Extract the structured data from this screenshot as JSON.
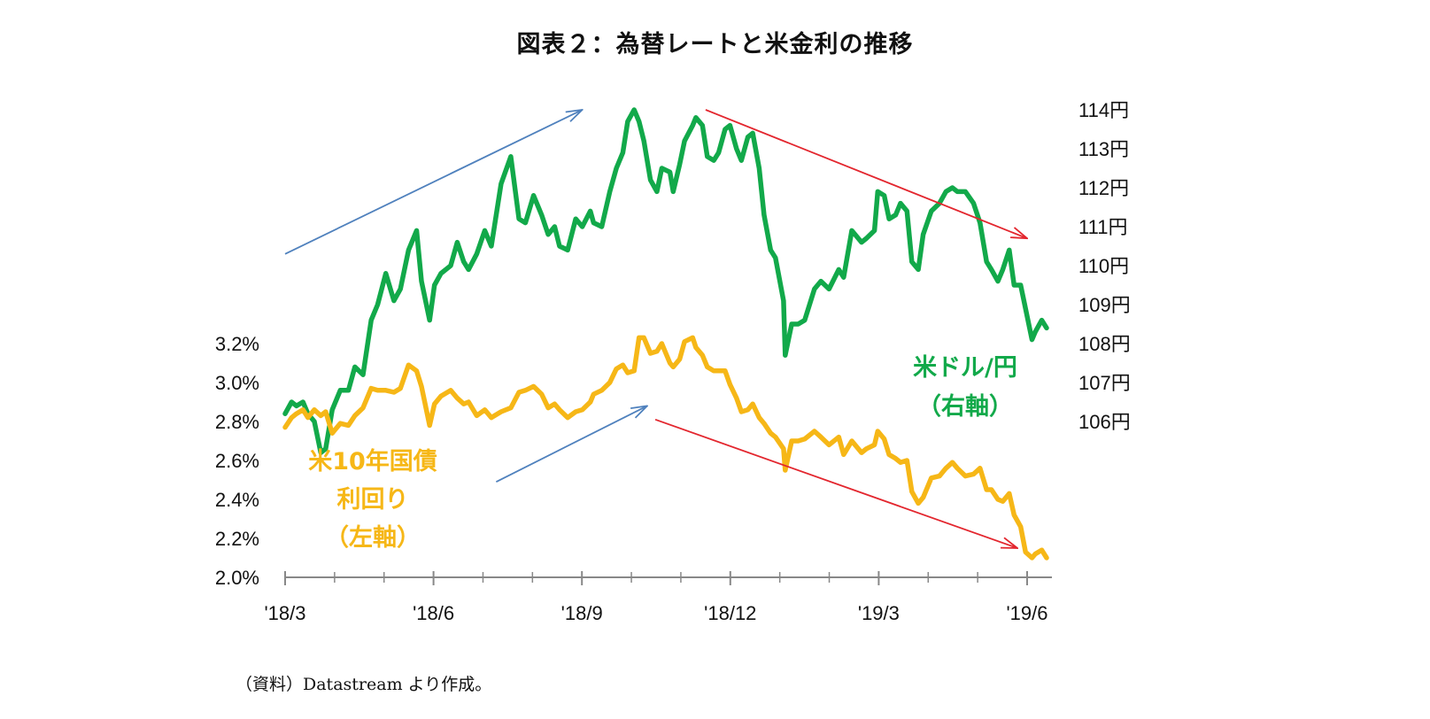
{
  "title": "図表２：為替レートと米金利の推移",
  "source_note": "（資料）Datastream より作成。",
  "chart_data": {
    "type": "line",
    "title": "図表２：為替レートと米金利の推移",
    "x": {
      "tick_labels": [
        "'18/3",
        "'18/6",
        "'18/9",
        "'18/12",
        "'19/3",
        "'19/6"
      ],
      "start": "2018-03-01",
      "end": "2019-06-01"
    },
    "y_left": {
      "tick_labels": [
        "2.0%",
        "2.2%",
        "2.4%",
        "2.6%",
        "2.8%",
        "3.0%",
        "3.2%"
      ],
      "ylim": [
        2.0,
        3.2
      ]
    },
    "y_right": {
      "tick_labels": [
        "106円",
        "107円",
        "108円",
        "109円",
        "110円",
        "111円",
        "112円",
        "113円",
        "114円"
      ],
      "ylim": [
        106,
        114
      ]
    },
    "grid": false,
    "series": [
      {
        "name": "米ドル/円（右軸）",
        "label_lines": [
          "米ドル/円",
          "（右軸）"
        ],
        "axis": "right",
        "color": "#12a94a",
        "points": [
          [
            "2018-03-01",
            106.2
          ],
          [
            "2018-03-05",
            106.5
          ],
          [
            "2018-03-08",
            106.4
          ],
          [
            "2018-03-12",
            106.5
          ],
          [
            "2018-03-15",
            106.2
          ],
          [
            "2018-03-19",
            106.0
          ],
          [
            "2018-03-23",
            105.2
          ],
          [
            "2018-03-26",
            105.3
          ],
          [
            "2018-03-30",
            106.3
          ],
          [
            "2018-04-04",
            106.8
          ],
          [
            "2018-04-09",
            106.8
          ],
          [
            "2018-04-13",
            107.4
          ],
          [
            "2018-04-18",
            107.2
          ],
          [
            "2018-04-23",
            108.6
          ],
          [
            "2018-04-27",
            109.0
          ],
          [
            "2018-05-02",
            109.8
          ],
          [
            "2018-05-07",
            109.1
          ],
          [
            "2018-05-11",
            109.4
          ],
          [
            "2018-05-16",
            110.4
          ],
          [
            "2018-05-21",
            110.9
          ],
          [
            "2018-05-24",
            109.6
          ],
          [
            "2018-05-29",
            108.6
          ],
          [
            "2018-06-01",
            109.5
          ],
          [
            "2018-06-05",
            109.8
          ],
          [
            "2018-06-11",
            110.0
          ],
          [
            "2018-06-15",
            110.6
          ],
          [
            "2018-06-19",
            110.1
          ],
          [
            "2018-06-22",
            109.9
          ],
          [
            "2018-06-27",
            110.3
          ],
          [
            "2018-07-02",
            110.9
          ],
          [
            "2018-07-06",
            110.5
          ],
          [
            "2018-07-12",
            112.1
          ],
          [
            "2018-07-18",
            112.8
          ],
          [
            "2018-07-23",
            111.2
          ],
          [
            "2018-07-27",
            111.1
          ],
          [
            "2018-08-01",
            111.8
          ],
          [
            "2018-08-06",
            111.3
          ],
          [
            "2018-08-10",
            110.8
          ],
          [
            "2018-08-14",
            111.0
          ],
          [
            "2018-08-17",
            110.5
          ],
          [
            "2018-08-22",
            110.4
          ],
          [
            "2018-08-27",
            111.2
          ],
          [
            "2018-08-31",
            111.0
          ],
          [
            "2018-09-05",
            111.4
          ],
          [
            "2018-09-07",
            111.1
          ],
          [
            "2018-09-12",
            111.0
          ],
          [
            "2018-09-17",
            111.9
          ],
          [
            "2018-09-21",
            112.5
          ],
          [
            "2018-09-25",
            112.9
          ],
          [
            "2018-09-28",
            113.7
          ],
          [
            "2018-10-02",
            114.0
          ],
          [
            "2018-10-05",
            113.7
          ],
          [
            "2018-10-08",
            113.2
          ],
          [
            "2018-10-12",
            112.2
          ],
          [
            "2018-10-16",
            111.9
          ],
          [
            "2018-10-19",
            112.5
          ],
          [
            "2018-10-24",
            112.4
          ],
          [
            "2018-10-26",
            111.9
          ],
          [
            "2018-10-30",
            112.6
          ],
          [
            "2018-11-02",
            113.2
          ],
          [
            "2018-11-07",
            113.6
          ],
          [
            "2018-11-09",
            113.8
          ],
          [
            "2018-11-13",
            113.6
          ],
          [
            "2018-11-16",
            112.8
          ],
          [
            "2018-11-20",
            112.7
          ],
          [
            "2018-11-23",
            112.9
          ],
          [
            "2018-11-27",
            113.5
          ],
          [
            "2018-11-30",
            113.6
          ],
          [
            "2018-12-04",
            113.0
          ],
          [
            "2018-12-07",
            112.7
          ],
          [
            "2018-12-11",
            113.3
          ],
          [
            "2018-12-14",
            113.4
          ],
          [
            "2018-12-18",
            112.5
          ],
          [
            "2018-12-21",
            111.3
          ],
          [
            "2018-12-25",
            110.4
          ],
          [
            "2018-12-28",
            110.2
          ],
          [
            "2019-01-02",
            109.1
          ],
          [
            "2019-01-03",
            107.7
          ],
          [
            "2019-01-07",
            108.5
          ],
          [
            "2019-01-11",
            108.5
          ],
          [
            "2019-01-15",
            108.6
          ],
          [
            "2019-01-21",
            109.4
          ],
          [
            "2019-01-25",
            109.6
          ],
          [
            "2019-01-30",
            109.4
          ],
          [
            "2019-02-05",
            109.9
          ],
          [
            "2019-02-08",
            109.7
          ],
          [
            "2019-02-13",
            110.9
          ],
          [
            "2019-02-19",
            110.6
          ],
          [
            "2019-02-22",
            110.7
          ],
          [
            "2019-02-27",
            110.9
          ],
          [
            "2019-03-01",
            111.9
          ],
          [
            "2019-03-05",
            111.8
          ],
          [
            "2019-03-08",
            111.2
          ],
          [
            "2019-03-12",
            111.3
          ],
          [
            "2019-03-15",
            111.6
          ],
          [
            "2019-03-19",
            111.4
          ],
          [
            "2019-03-22",
            110.1
          ],
          [
            "2019-03-26",
            109.9
          ],
          [
            "2019-03-29",
            110.8
          ],
          [
            "2019-04-03",
            111.4
          ],
          [
            "2019-04-08",
            111.6
          ],
          [
            "2019-04-12",
            111.9
          ],
          [
            "2019-04-16",
            112.0
          ],
          [
            "2019-04-19",
            111.9
          ],
          [
            "2019-04-24",
            111.9
          ],
          [
            "2019-04-29",
            111.6
          ],
          [
            "2019-05-03",
            111.1
          ],
          [
            "2019-05-07",
            110.1
          ],
          [
            "2019-05-10",
            109.9
          ],
          [
            "2019-05-14",
            109.6
          ],
          [
            "2019-05-17",
            109.9
          ],
          [
            "2019-05-21",
            110.4
          ],
          [
            "2019-05-24",
            109.5
          ],
          [
            "2019-05-28",
            109.5
          ],
          [
            "2019-05-31",
            108.9
          ],
          [
            "2019-06-04",
            108.1
          ],
          [
            "2019-06-06",
            108.3
          ],
          [
            "2019-06-10",
            108.6
          ],
          [
            "2019-06-13",
            108.4
          ]
        ]
      },
      {
        "name": "米10年国債利回り（左軸）",
        "label_lines": [
          "米10年国債",
          "利回り",
          "（左軸）"
        ],
        "axis": "left",
        "color": "#f6b717",
        "points": [
          [
            "2018-03-01",
            2.77
          ],
          [
            "2018-03-05",
            2.82
          ],
          [
            "2018-03-08",
            2.84
          ],
          [
            "2018-03-12",
            2.86
          ],
          [
            "2018-03-15",
            2.82
          ],
          [
            "2018-03-19",
            2.86
          ],
          [
            "2018-03-23",
            2.83
          ],
          [
            "2018-03-26",
            2.85
          ],
          [
            "2018-03-30",
            2.74
          ],
          [
            "2018-04-04",
            2.79
          ],
          [
            "2018-04-09",
            2.78
          ],
          [
            "2018-04-13",
            2.83
          ],
          [
            "2018-04-18",
            2.87
          ],
          [
            "2018-04-23",
            2.97
          ],
          [
            "2018-04-27",
            2.96
          ],
          [
            "2018-05-02",
            2.96
          ],
          [
            "2018-05-07",
            2.95
          ],
          [
            "2018-05-11",
            2.97
          ],
          [
            "2018-05-16",
            3.09
          ],
          [
            "2018-05-21",
            3.06
          ],
          [
            "2018-05-24",
            2.98
          ],
          [
            "2018-05-29",
            2.78
          ],
          [
            "2018-06-01",
            2.89
          ],
          [
            "2018-06-05",
            2.93
          ],
          [
            "2018-06-11",
            2.96
          ],
          [
            "2018-06-15",
            2.92
          ],
          [
            "2018-06-19",
            2.89
          ],
          [
            "2018-06-22",
            2.9
          ],
          [
            "2018-06-27",
            2.83
          ],
          [
            "2018-07-02",
            2.86
          ],
          [
            "2018-07-06",
            2.82
          ],
          [
            "2018-07-12",
            2.85
          ],
          [
            "2018-07-18",
            2.87
          ],
          [
            "2018-07-23",
            2.95
          ],
          [
            "2018-07-27",
            2.96
          ],
          [
            "2018-08-01",
            2.98
          ],
          [
            "2018-08-06",
            2.94
          ],
          [
            "2018-08-10",
            2.87
          ],
          [
            "2018-08-14",
            2.89
          ],
          [
            "2018-08-17",
            2.86
          ],
          [
            "2018-08-22",
            2.82
          ],
          [
            "2018-08-27",
            2.85
          ],
          [
            "2018-08-31",
            2.86
          ],
          [
            "2018-09-05",
            2.9
          ],
          [
            "2018-09-07",
            2.94
          ],
          [
            "2018-09-12",
            2.96
          ],
          [
            "2018-09-17",
            3.0
          ],
          [
            "2018-09-21",
            3.07
          ],
          [
            "2018-09-25",
            3.09
          ],
          [
            "2018-09-28",
            3.05
          ],
          [
            "2018-10-02",
            3.06
          ],
          [
            "2018-10-05",
            3.23
          ],
          [
            "2018-10-08",
            3.23
          ],
          [
            "2018-10-12",
            3.15
          ],
          [
            "2018-10-16",
            3.16
          ],
          [
            "2018-10-19",
            3.2
          ],
          [
            "2018-10-24",
            3.1
          ],
          [
            "2018-10-26",
            3.08
          ],
          [
            "2018-10-30",
            3.12
          ],
          [
            "2018-11-02",
            3.21
          ],
          [
            "2018-11-07",
            3.23
          ],
          [
            "2018-11-09",
            3.18
          ],
          [
            "2018-11-13",
            3.14
          ],
          [
            "2018-11-16",
            3.08
          ],
          [
            "2018-11-20",
            3.06
          ],
          [
            "2018-11-23",
            3.06
          ],
          [
            "2018-11-27",
            3.06
          ],
          [
            "2018-11-30",
            2.99
          ],
          [
            "2018-12-04",
            2.92
          ],
          [
            "2018-12-07",
            2.85
          ],
          [
            "2018-12-11",
            2.86
          ],
          [
            "2018-12-14",
            2.89
          ],
          [
            "2018-12-18",
            2.82
          ],
          [
            "2018-12-21",
            2.79
          ],
          [
            "2018-12-25",
            2.74
          ],
          [
            "2018-12-28",
            2.72
          ],
          [
            "2019-01-02",
            2.66
          ],
          [
            "2019-01-03",
            2.55
          ],
          [
            "2019-01-07",
            2.7
          ],
          [
            "2019-01-11",
            2.7
          ],
          [
            "2019-01-15",
            2.71
          ],
          [
            "2019-01-21",
            2.75
          ],
          [
            "2019-01-25",
            2.72
          ],
          [
            "2019-01-30",
            2.68
          ],
          [
            "2019-02-05",
            2.72
          ],
          [
            "2019-02-08",
            2.63
          ],
          [
            "2019-02-13",
            2.7
          ],
          [
            "2019-02-19",
            2.64
          ],
          [
            "2019-02-22",
            2.66
          ],
          [
            "2019-02-27",
            2.68
          ],
          [
            "2019-03-01",
            2.75
          ],
          [
            "2019-03-05",
            2.71
          ],
          [
            "2019-03-08",
            2.63
          ],
          [
            "2019-03-12",
            2.61
          ],
          [
            "2019-03-15",
            2.59
          ],
          [
            "2019-03-19",
            2.6
          ],
          [
            "2019-03-22",
            2.44
          ],
          [
            "2019-03-26",
            2.38
          ],
          [
            "2019-03-29",
            2.41
          ],
          [
            "2019-04-03",
            2.51
          ],
          [
            "2019-04-08",
            2.52
          ],
          [
            "2019-04-12",
            2.56
          ],
          [
            "2019-04-16",
            2.59
          ],
          [
            "2019-04-19",
            2.56
          ],
          [
            "2019-04-24",
            2.52
          ],
          [
            "2019-04-29",
            2.53
          ],
          [
            "2019-05-03",
            2.56
          ],
          [
            "2019-05-07",
            2.45
          ],
          [
            "2019-05-10",
            2.45
          ],
          [
            "2019-05-14",
            2.4
          ],
          [
            "2019-05-17",
            2.39
          ],
          [
            "2019-05-21",
            2.43
          ],
          [
            "2019-05-24",
            2.32
          ],
          [
            "2019-05-28",
            2.26
          ],
          [
            "2019-05-31",
            2.13
          ],
          [
            "2019-06-04",
            2.1
          ],
          [
            "2019-06-06",
            2.12
          ],
          [
            "2019-06-10",
            2.14
          ],
          [
            "2019-06-13",
            2.1
          ]
        ]
      }
    ],
    "annotations": [
      {
        "type": "trend-arrow",
        "color": "#4f81bd",
        "from": [
          "2018-03-01",
          110.3
        ],
        "to": [
          "2018-08-31",
          114.0
        ],
        "axis": "right"
      },
      {
        "type": "trend-arrow",
        "color": "#e3262e",
        "from": [
          "2018-11-15",
          114.0
        ],
        "to": [
          "2019-06-01",
          110.7
        ],
        "axis": "right"
      },
      {
        "type": "trend-arrow",
        "color": "#4f81bd",
        "from": [
          "2018-07-09",
          2.49
        ],
        "to": [
          "2018-10-10",
          2.88
        ],
        "axis": "left"
      },
      {
        "type": "trend-arrow",
        "color": "#e3262e",
        "from": [
          "2018-10-15",
          2.81
        ],
        "to": [
          "2019-05-26",
          2.15
        ],
        "axis": "left"
      }
    ]
  }
}
